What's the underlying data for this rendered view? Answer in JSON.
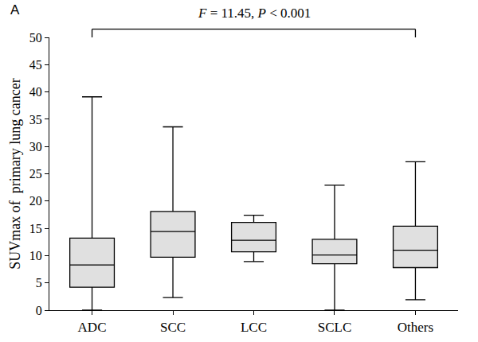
{
  "chart_data": {
    "type": "box",
    "panel_label": "A",
    "annotation": "F = 11.45, P < 0.001",
    "y_label": "SUVmax of  primary lung cancer",
    "categories": [
      "ADC",
      "SCC",
      "LCC",
      "SCLC",
      "Others"
    ],
    "min": [
      0,
      2.3,
      8.9,
      0,
      1.9
    ],
    "q1": [
      4.2,
      9.7,
      10.7,
      8.5,
      7.8
    ],
    "median": [
      8.3,
      14.4,
      12.8,
      10.1,
      11.0
    ],
    "q3": [
      13.2,
      18.1,
      16.1,
      13.0,
      15.4
    ],
    "max": [
      39.1,
      33.6,
      17.4,
      22.9,
      27.2
    ],
    "color": "#e0e0e0",
    "ylim": [
      0,
      50
    ],
    "yticks": [
      0,
      5,
      10,
      15,
      20,
      25,
      30,
      35,
      40,
      45,
      50
    ]
  }
}
